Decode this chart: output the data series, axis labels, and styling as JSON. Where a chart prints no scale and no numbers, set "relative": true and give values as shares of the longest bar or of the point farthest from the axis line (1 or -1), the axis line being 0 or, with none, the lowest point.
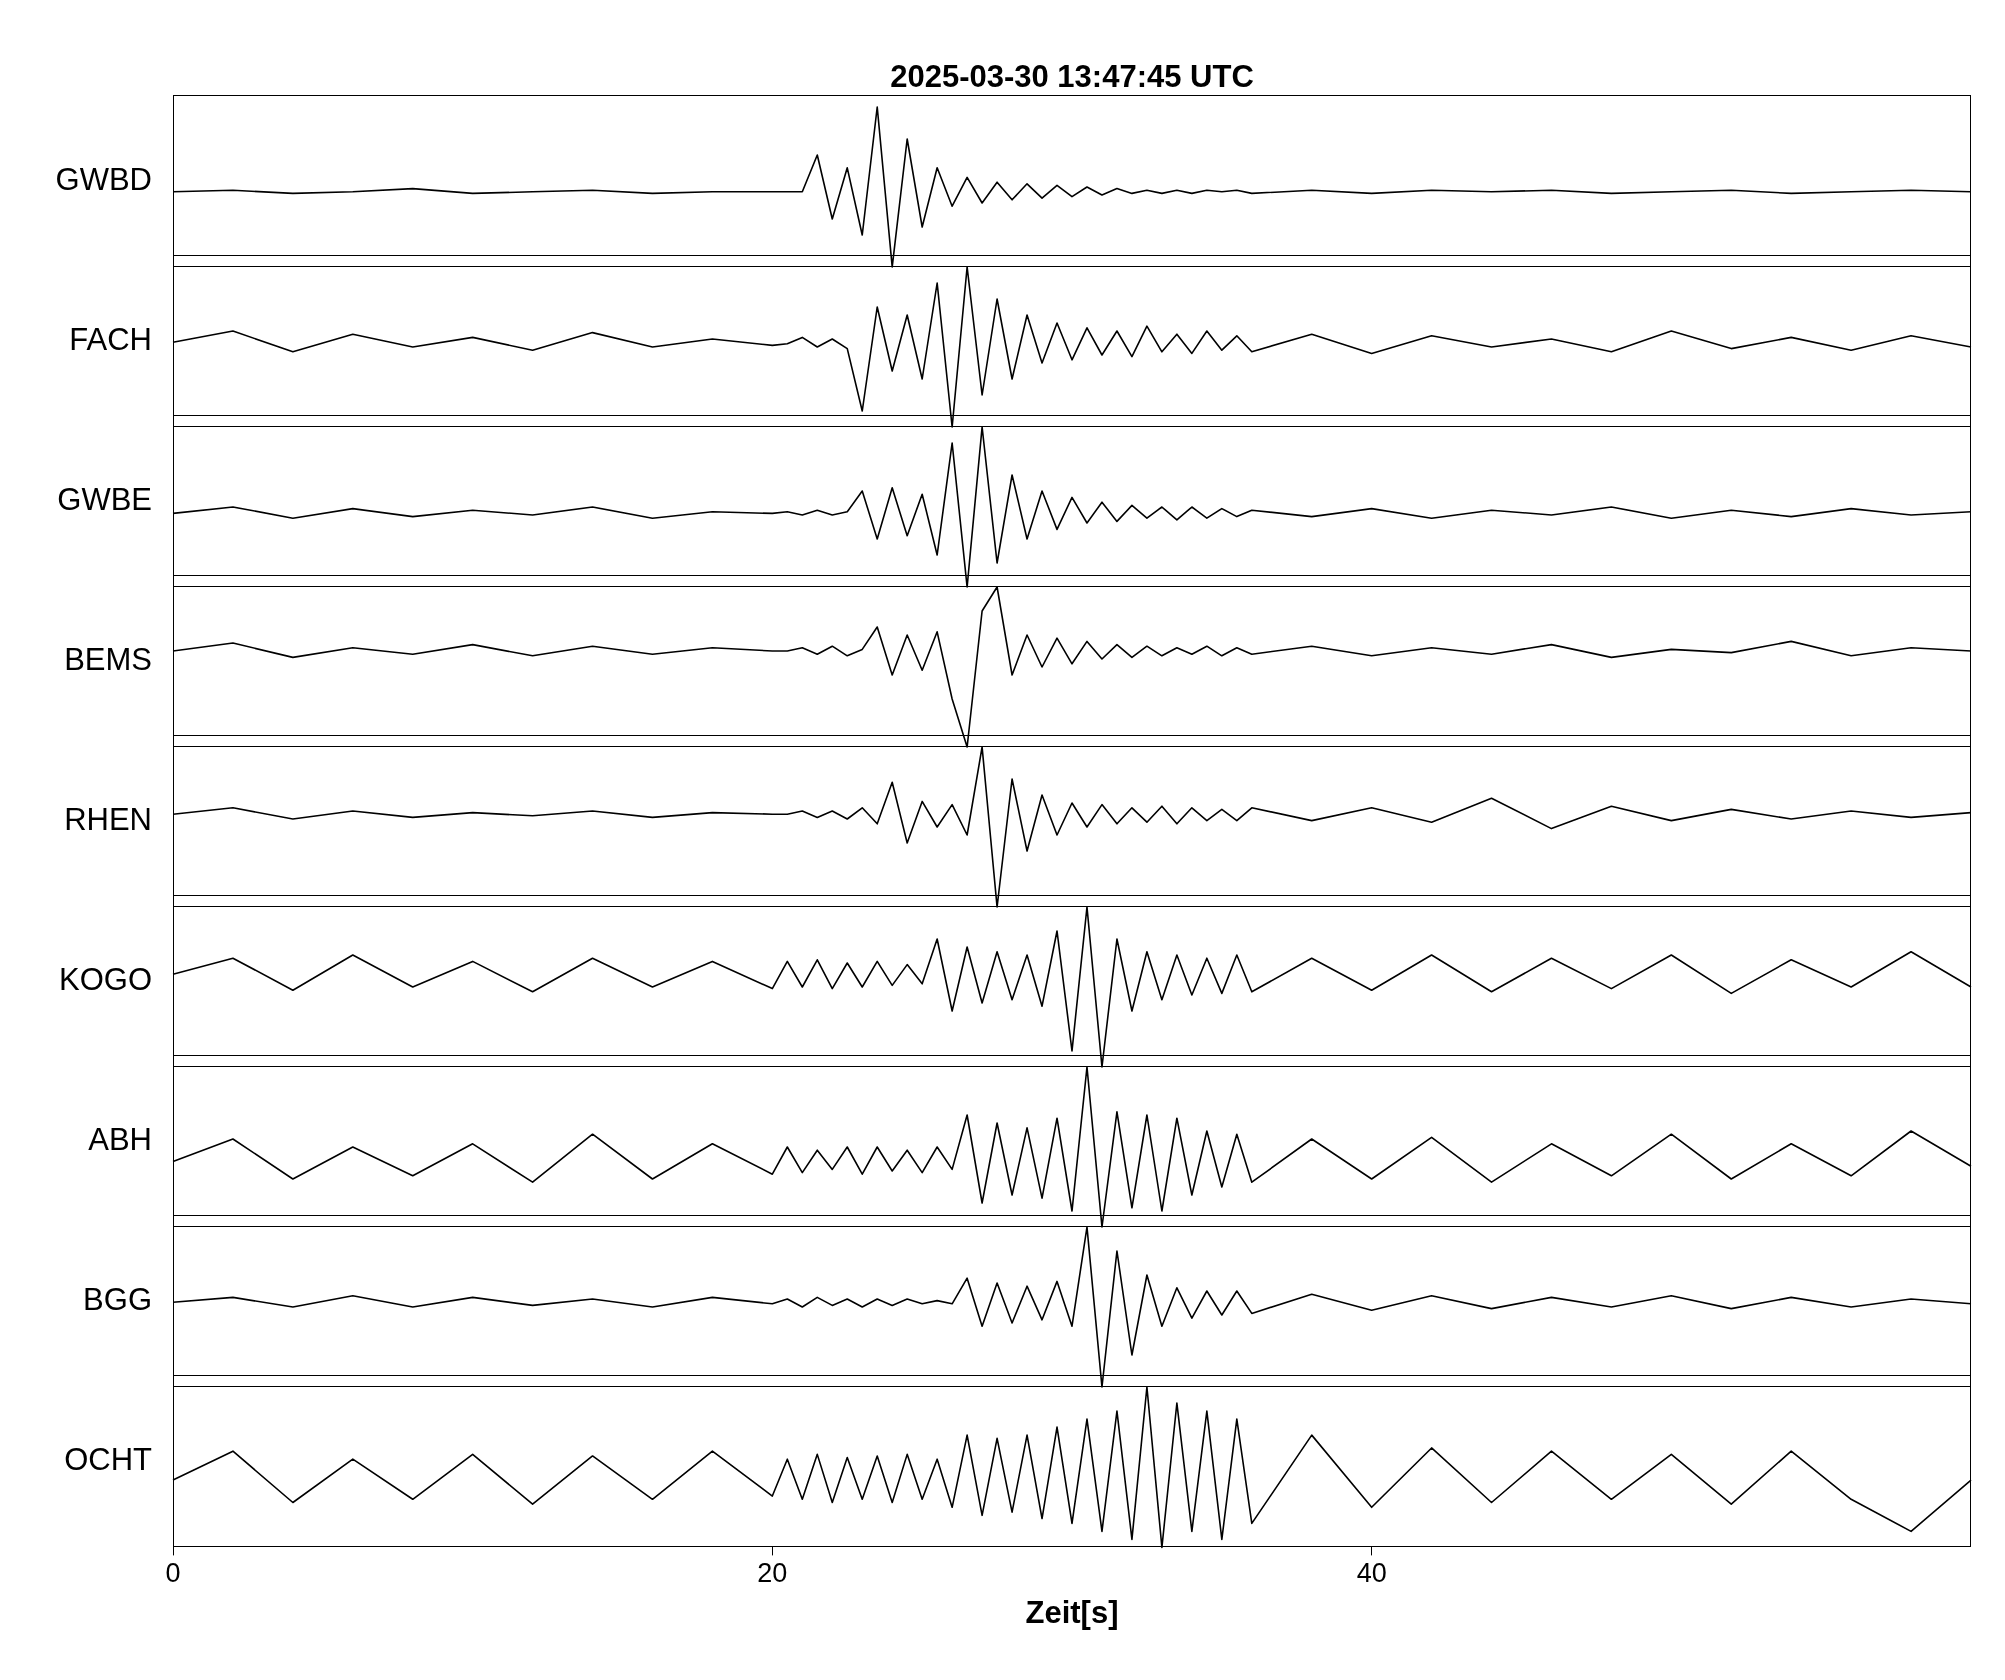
{
  "chart_data": [
    {
      "type": "line",
      "title": "2025-03-30  13:47:45 UTC",
      "ylabel": "GWBD",
      "relative": true,
      "color": "#000000",
      "xlim": [
        0,
        60
      ],
      "xticks": [
        0,
        20,
        40
      ],
      "tick_labels": false,
      "x": [
        0,
        2,
        4,
        6,
        8,
        10,
        12,
        14,
        16,
        18,
        20,
        20.5,
        21,
        21.5,
        22,
        22.5,
        23,
        23.5,
        24,
        24.5,
        25,
        25.5,
        26,
        26.5,
        27,
        27.5,
        28,
        28.5,
        29,
        29.5,
        30,
        30.5,
        31,
        31.5,
        32,
        32.5,
        33,
        33.5,
        34,
        34.5,
        35,
        35.5,
        36,
        38,
        40,
        42,
        44,
        46,
        48,
        50,
        52,
        54,
        56,
        58,
        60
      ],
      "values": [
        0.47,
        0.48,
        0.46,
        0.47,
        0.49,
        0.46,
        0.47,
        0.48,
        0.46,
        0.47,
        0.47,
        0.47,
        0.47,
        0.7,
        0.3,
        0.62,
        0.2,
        1.0,
        0.0,
        0.8,
        0.25,
        0.62,
        0.38,
        0.56,
        0.4,
        0.53,
        0.42,
        0.52,
        0.43,
        0.51,
        0.44,
        0.5,
        0.45,
        0.49,
        0.46,
        0.48,
        0.46,
        0.48,
        0.46,
        0.48,
        0.47,
        0.48,
        0.46,
        0.48,
        0.46,
        0.48,
        0.47,
        0.48,
        0.46,
        0.47,
        0.48,
        0.46,
        0.47,
        0.48,
        0.47
      ]
    },
    {
      "type": "line",
      "ylabel": "FACH",
      "relative": true,
      "color": "#000000",
      "xlim": [
        0,
        60
      ],
      "xticks": [
        0,
        20,
        40
      ],
      "tick_labels": false,
      "x": [
        0,
        2,
        4,
        6,
        8,
        10,
        12,
        14,
        16,
        18,
        20,
        20.5,
        21,
        21.5,
        22,
        22.5,
        23,
        23.5,
        24,
        24.5,
        25,
        25.5,
        26,
        26.5,
        27,
        27.5,
        28,
        28.5,
        29,
        29.5,
        30,
        30.5,
        31,
        31.5,
        32,
        32.5,
        33,
        33.5,
        34,
        34.5,
        35,
        35.5,
        36,
        38,
        40,
        42,
        44,
        46,
        48,
        50,
        52,
        54,
        56,
        58,
        60
      ],
      "values": [
        0.53,
        0.6,
        0.47,
        0.58,
        0.5,
        0.56,
        0.48,
        0.59,
        0.5,
        0.55,
        0.51,
        0.52,
        0.56,
        0.5,
        0.55,
        0.49,
        0.1,
        0.75,
        0.35,
        0.7,
        0.3,
        0.9,
        0.0,
        1.0,
        0.2,
        0.8,
        0.3,
        0.7,
        0.4,
        0.65,
        0.42,
        0.62,
        0.45,
        0.6,
        0.44,
        0.63,
        0.47,
        0.58,
        0.46,
        0.6,
        0.48,
        0.57,
        0.47,
        0.58,
        0.46,
        0.57,
        0.5,
        0.55,
        0.47,
        0.6,
        0.49,
        0.56,
        0.48,
        0.57,
        0.5
      ]
    },
    {
      "type": "line",
      "ylabel": "GWBE",
      "relative": true,
      "color": "#000000",
      "xlim": [
        0,
        60
      ],
      "xticks": [
        0,
        20,
        40
      ],
      "tick_labels": false,
      "x": [
        0,
        2,
        4,
        6,
        8,
        10,
        12,
        14,
        16,
        18,
        20,
        20.5,
        21,
        21.5,
        22,
        22.5,
        23,
        23.5,
        24,
        24.5,
        25,
        25.5,
        26,
        26.5,
        27,
        27.5,
        28,
        28.5,
        29,
        29.5,
        30,
        30.5,
        31,
        31.5,
        32,
        32.5,
        33,
        33.5,
        34,
        34.5,
        35,
        35.5,
        36,
        38,
        40,
        42,
        44,
        46,
        48,
        50,
        52,
        54,
        56,
        58,
        60
      ],
      "values": [
        0.46,
        0.5,
        0.43,
        0.49,
        0.44,
        0.48,
        0.45,
        0.5,
        0.43,
        0.47,
        0.46,
        0.47,
        0.45,
        0.48,
        0.45,
        0.47,
        0.6,
        0.3,
        0.62,
        0.32,
        0.58,
        0.2,
        0.9,
        0.0,
        1.0,
        0.15,
        0.7,
        0.3,
        0.6,
        0.36,
        0.56,
        0.4,
        0.53,
        0.41,
        0.51,
        0.43,
        0.5,
        0.42,
        0.5,
        0.43,
        0.49,
        0.44,
        0.48,
        0.44,
        0.49,
        0.43,
        0.48,
        0.45,
        0.5,
        0.43,
        0.48,
        0.44,
        0.49,
        0.45,
        0.47
      ]
    },
    {
      "type": "line",
      "ylabel": "BEMS",
      "relative": true,
      "color": "#000000",
      "xlim": [
        0,
        60
      ],
      "xticks": [
        0,
        20,
        40
      ],
      "tick_labels": false,
      "x": [
        0,
        2,
        4,
        6,
        8,
        10,
        12,
        14,
        16,
        18,
        20,
        20.5,
        21,
        21.5,
        22,
        22.5,
        23,
        23.5,
        24,
        24.5,
        25,
        25.5,
        26,
        26.5,
        27,
        27.5,
        28,
        28.5,
        29,
        29.5,
        30,
        30.5,
        31,
        31.5,
        32,
        32.5,
        33,
        33.5,
        34,
        34.5,
        35,
        35.5,
        36,
        38,
        40,
        42,
        44,
        46,
        48,
        50,
        52,
        54,
        56,
        58,
        60
      ],
      "values": [
        0.6,
        0.65,
        0.56,
        0.62,
        0.58,
        0.64,
        0.57,
        0.63,
        0.58,
        0.62,
        0.6,
        0.6,
        0.62,
        0.58,
        0.63,
        0.57,
        0.61,
        0.75,
        0.45,
        0.7,
        0.48,
        0.72,
        0.3,
        0.0,
        0.85,
        1.0,
        0.45,
        0.7,
        0.5,
        0.68,
        0.52,
        0.66,
        0.55,
        0.64,
        0.56,
        0.63,
        0.57,
        0.62,
        0.58,
        0.63,
        0.57,
        0.62,
        0.58,
        0.63,
        0.57,
        0.62,
        0.58,
        0.64,
        0.56,
        0.61,
        0.59,
        0.66,
        0.57,
        0.62,
        0.6
      ]
    },
    {
      "type": "line",
      "ylabel": "RHEN",
      "relative": true,
      "color": "#000000",
      "xlim": [
        0,
        60
      ],
      "xticks": [
        0,
        20,
        40
      ],
      "tick_labels": false,
      "x": [
        0,
        2,
        4,
        6,
        8,
        10,
        12,
        14,
        16,
        18,
        20,
        20.5,
        21,
        21.5,
        22,
        22.5,
        23,
        23.5,
        24,
        24.5,
        25,
        25.5,
        26,
        26.5,
        27,
        27.5,
        28,
        28.5,
        29,
        29.5,
        30,
        30.5,
        31,
        31.5,
        32,
        32.5,
        33,
        33.5,
        34,
        34.5,
        35,
        35.5,
        36,
        38,
        40,
        42,
        44,
        46,
        48,
        50,
        52,
        54,
        56,
        58,
        60
      ],
      "values": [
        0.58,
        0.62,
        0.55,
        0.6,
        0.56,
        0.59,
        0.57,
        0.6,
        0.56,
        0.59,
        0.58,
        0.58,
        0.6,
        0.56,
        0.6,
        0.55,
        0.62,
        0.52,
        0.78,
        0.4,
        0.66,
        0.5,
        0.64,
        0.45,
        1.0,
        0.0,
        0.8,
        0.35,
        0.7,
        0.45,
        0.65,
        0.5,
        0.64,
        0.52,
        0.62,
        0.53,
        0.63,
        0.52,
        0.62,
        0.54,
        0.61,
        0.54,
        0.62,
        0.54,
        0.62,
        0.53,
        0.68,
        0.49,
        0.63,
        0.54,
        0.61,
        0.55,
        0.6,
        0.56,
        0.59
      ]
    },
    {
      "type": "line",
      "ylabel": "KOGO",
      "relative": true,
      "color": "#000000",
      "xlim": [
        0,
        60
      ],
      "xticks": [
        0,
        20,
        40
      ],
      "tick_labels": false,
      "x": [
        0,
        2,
        4,
        6,
        8,
        10,
        12,
        14,
        16,
        18,
        20,
        20.5,
        21,
        21.5,
        22,
        22.5,
        23,
        23.5,
        24,
        24.5,
        25,
        25.5,
        26,
        26.5,
        27,
        27.5,
        28,
        28.5,
        29,
        29.5,
        30,
        30.5,
        31,
        31.5,
        32,
        32.5,
        33,
        33.5,
        34,
        34.5,
        35,
        35.5,
        36,
        38,
        40,
        42,
        44,
        46,
        48,
        50,
        52,
        54,
        56,
        58,
        60
      ],
      "values": [
        0.58,
        0.68,
        0.48,
        0.7,
        0.5,
        0.66,
        0.47,
        0.68,
        0.5,
        0.66,
        0.49,
        0.66,
        0.5,
        0.67,
        0.49,
        0.65,
        0.5,
        0.66,
        0.51,
        0.64,
        0.52,
        0.8,
        0.35,
        0.75,
        0.4,
        0.72,
        0.42,
        0.7,
        0.38,
        0.85,
        0.1,
        1.0,
        0.0,
        0.8,
        0.35,
        0.72,
        0.42,
        0.7,
        0.45,
        0.68,
        0.46,
        0.7,
        0.47,
        0.68,
        0.48,
        0.7,
        0.47,
        0.68,
        0.49,
        0.7,
        0.46,
        0.67,
        0.5,
        0.72,
        0.5
      ]
    },
    {
      "type": "line",
      "ylabel": "ABH",
      "relative": true,
      "color": "#000000",
      "xlim": [
        0,
        60
      ],
      "xticks": [
        0,
        20,
        40
      ],
      "tick_labels": false,
      "x": [
        0,
        2,
        4,
        6,
        8,
        10,
        12,
        14,
        16,
        18,
        20,
        20.5,
        21,
        21.5,
        22,
        22.5,
        23,
        23.5,
        24,
        24.5,
        25,
        25.5,
        26,
        26.5,
        27,
        27.5,
        28,
        28.5,
        29,
        29.5,
        30,
        30.5,
        31,
        31.5,
        32,
        32.5,
        33,
        33.5,
        34,
        34.5,
        35,
        35.5,
        36,
        38,
        40,
        42,
        44,
        46,
        48,
        50,
        52,
        54,
        56,
        58,
        60
      ],
      "values": [
        0.41,
        0.55,
        0.3,
        0.5,
        0.32,
        0.52,
        0.28,
        0.58,
        0.3,
        0.52,
        0.33,
        0.5,
        0.34,
        0.48,
        0.36,
        0.5,
        0.33,
        0.5,
        0.35,
        0.48,
        0.34,
        0.5,
        0.36,
        0.7,
        0.15,
        0.65,
        0.2,
        0.62,
        0.18,
        0.68,
        0.1,
        1.0,
        0.0,
        0.72,
        0.12,
        0.7,
        0.1,
        0.68,
        0.2,
        0.6,
        0.25,
        0.58,
        0.28,
        0.55,
        0.3,
        0.56,
        0.28,
        0.52,
        0.32,
        0.58,
        0.3,
        0.52,
        0.32,
        0.6,
        0.38
      ]
    },
    {
      "type": "line",
      "ylabel": "BGG",
      "relative": true,
      "color": "#000000",
      "xlim": [
        0,
        60
      ],
      "xticks": [
        0,
        20,
        40
      ],
      "tick_labels": false,
      "x": [
        0,
        2,
        4,
        6,
        8,
        10,
        12,
        14,
        16,
        18,
        20,
        20.5,
        21,
        21.5,
        22,
        22.5,
        23,
        23.5,
        24,
        24.5,
        25,
        25.5,
        26,
        26.5,
        27,
        27.5,
        28,
        28.5,
        29,
        29.5,
        30,
        30.5,
        31,
        31.5,
        32,
        32.5,
        33,
        33.5,
        34,
        34.5,
        35,
        35.5,
        36,
        38,
        40,
        42,
        44,
        46,
        48,
        50,
        52,
        54,
        56,
        58,
        60
      ],
      "values": [
        0.53,
        0.56,
        0.5,
        0.57,
        0.5,
        0.56,
        0.51,
        0.55,
        0.5,
        0.56,
        0.52,
        0.55,
        0.5,
        0.56,
        0.51,
        0.55,
        0.5,
        0.55,
        0.51,
        0.55,
        0.52,
        0.54,
        0.52,
        0.68,
        0.38,
        0.65,
        0.4,
        0.63,
        0.42,
        0.66,
        0.38,
        1.0,
        0.0,
        0.85,
        0.2,
        0.7,
        0.38,
        0.62,
        0.43,
        0.6,
        0.45,
        0.6,
        0.46,
        0.58,
        0.48,
        0.57,
        0.49,
        0.56,
        0.5,
        0.57,
        0.49,
        0.56,
        0.5,
        0.55,
        0.52
      ]
    },
    {
      "type": "line",
      "ylabel": "OCHT",
      "xlabel": "Zeit[s]",
      "relative": true,
      "color": "#000000",
      "xlim": [
        0,
        60
      ],
      "xticks": [
        0,
        20,
        40
      ],
      "tick_labels": "x",
      "x": [
        0,
        2,
        4,
        6,
        8,
        10,
        12,
        14,
        16,
        18,
        20,
        20.5,
        21,
        21.5,
        22,
        22.5,
        23,
        23.5,
        24,
        24.5,
        25,
        25.5,
        26,
        26.5,
        27,
        27.5,
        28,
        28.5,
        29,
        29.5,
        30,
        30.5,
        31,
        31.5,
        32,
        32.5,
        33,
        33.5,
        34,
        34.5,
        35,
        35.5,
        36,
        38,
        40,
        42,
        44,
        46,
        48,
        50,
        52,
        54,
        56,
        58,
        60
      ],
      "values": [
        0.42,
        0.6,
        0.28,
        0.55,
        0.3,
        0.58,
        0.27,
        0.57,
        0.3,
        0.6,
        0.32,
        0.55,
        0.3,
        0.58,
        0.28,
        0.56,
        0.3,
        0.57,
        0.28,
        0.58,
        0.3,
        0.55,
        0.25,
        0.7,
        0.2,
        0.68,
        0.22,
        0.7,
        0.18,
        0.75,
        0.15,
        0.8,
        0.1,
        0.85,
        0.05,
        1.0,
        0.0,
        0.9,
        0.1,
        0.85,
        0.05,
        0.8,
        0.15,
        0.7,
        0.25,
        0.62,
        0.28,
        0.6,
        0.3,
        0.58,
        0.27,
        0.6,
        0.3,
        0.1,
        0.42
      ]
    }
  ]
}
